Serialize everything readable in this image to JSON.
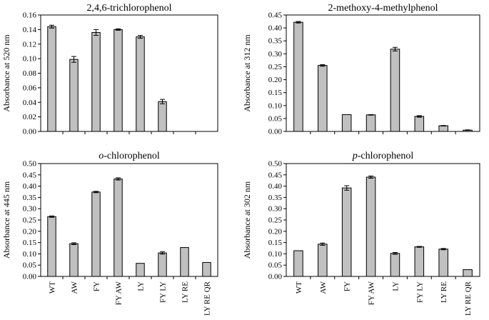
{
  "figure": {
    "background": "#ffffff",
    "bar_color": "#c0c0c0",
    "line_color": "#000000"
  },
  "chart_data": [
    {
      "type": "bar",
      "title": "2,4,6-trichlorophenol",
      "title_parts": [
        {
          "text": "2,4,6-trichlorophenol",
          "italic": false
        }
      ],
      "xlabel": "",
      "ylabel": "Absorbance at 520 nm",
      "ylim": [
        0,
        0.16
      ],
      "yticks": [
        "0.00",
        "0.02",
        "0.04",
        "0.06",
        "0.08",
        "0.10",
        "0.12",
        "0.14",
        "0.16"
      ],
      "categories": [
        "WT",
        "AW",
        "FY",
        "FY AW",
        "LY",
        "FY LY",
        "LY RE",
        "LY RE QR"
      ],
      "values": [
        0.144,
        0.099,
        0.136,
        0.14,
        0.13,
        0.041,
        null,
        null
      ],
      "errors": [
        0.002,
        0.004,
        0.004,
        0.001,
        0.002,
        0.003,
        null,
        null
      ],
      "show_xticklabels": false
    },
    {
      "type": "bar",
      "title": "2-methoxy-4-methylphenol",
      "title_parts": [
        {
          "text": "2-methoxy-4-methylphenol",
          "italic": false
        }
      ],
      "xlabel": "",
      "ylabel": "Absorbance at 312 nm",
      "ylim": [
        0,
        0.45
      ],
      "yticks": [
        "0.00",
        "0.05",
        "0.10",
        "0.15",
        "0.20",
        "0.25",
        "0.30",
        "0.35",
        "0.40",
        "0.45"
      ],
      "categories": [
        "WT",
        "AW",
        "FY",
        "FY AW",
        "LY",
        "FY LY",
        "LY RE",
        "LY RE QR"
      ],
      "values": [
        0.422,
        0.255,
        0.065,
        0.064,
        0.318,
        0.058,
        0.022,
        0.005
      ],
      "errors": [
        0.003,
        0.003,
        0.0,
        0.001,
        0.007,
        0.003,
        0.001,
        0.001
      ],
      "show_xticklabels": false
    },
    {
      "type": "bar",
      "title": "o-chlorophenol",
      "title_parts": [
        {
          "text": "o",
          "italic": true
        },
        {
          "text": "-chlorophenol",
          "italic": false
        }
      ],
      "xlabel": "",
      "ylabel": "Absorbance at 445 nm",
      "ylim": [
        0,
        0.5
      ],
      "yticks": [
        "0.00",
        "0.05",
        "0.10",
        "0.15",
        "0.20",
        "0.25",
        "0.30",
        "0.35",
        "0.40",
        "0.45",
        "0.50"
      ],
      "categories": [
        "WT",
        "AW",
        "FY",
        "FY AW",
        "LY",
        "FY LY",
        "LY RE",
        "LY RE QR"
      ],
      "values": [
        0.265,
        0.145,
        0.374,
        0.432,
        0.058,
        0.104,
        0.128,
        0.062
      ],
      "errors": [
        0.003,
        0.004,
        0.003,
        0.005,
        0.0,
        0.005,
        0.0,
        0.0
      ],
      "show_xticklabels": true
    },
    {
      "type": "bar",
      "title": "p-chlorophenol",
      "title_parts": [
        {
          "text": "p",
          "italic": true
        },
        {
          "text": "-chlorophenol",
          "italic": false
        }
      ],
      "xlabel": "",
      "ylabel": "Absorbance at 302 nm",
      "ylim": [
        0,
        0.5
      ],
      "yticks": [
        "0.00",
        "0.05",
        "0.10",
        "0.15",
        "0.20",
        "0.25",
        "0.30",
        "0.35",
        "0.40",
        "0.45",
        "0.50"
      ],
      "categories": [
        "WT",
        "AW",
        "FY",
        "FY AW",
        "LY",
        "FY LY",
        "LY RE",
        "LY RE QR"
      ],
      "values": [
        0.114,
        0.143,
        0.392,
        0.44,
        0.102,
        0.131,
        0.121,
        0.03
      ],
      "errors": [
        0.0,
        0.005,
        0.01,
        0.005,
        0.004,
        0.002,
        0.003,
        0.0
      ],
      "show_xticklabels": true
    }
  ]
}
